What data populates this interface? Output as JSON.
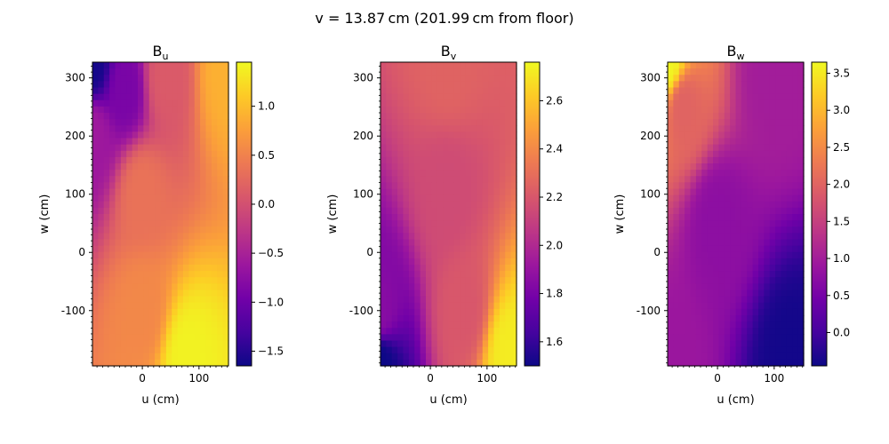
{
  "suptitle": "v = 13.87 cm (201.99 cm from floor)",
  "colormap": [
    "#0d0887",
    "#46039f",
    "#7201a8",
    "#9c179e",
    "#bd3786",
    "#d8576b",
    "#ed7953",
    "#fb9f3a",
    "#fdca26",
    "#f0f921"
  ],
  "chart_data": [
    {
      "type": "heatmap",
      "title": "B",
      "title_sub": "u",
      "xlabel": "u (cm)",
      "ylabel": "w (cm)",
      "xlim": [
        -88,
        152
      ],
      "ylim": [
        -195,
        327
      ],
      "xticks": [
        0,
        100
      ],
      "yticks": [
        -100,
        0,
        100,
        200,
        300
      ],
      "ytick_labels": [
        "-100",
        "0",
        "100",
        "200",
        "300"
      ],
      "colorbar": {
        "min": -1.65,
        "max": 1.45,
        "ticks": [
          -1.5,
          -1.0,
          -0.5,
          0.0,
          0.5,
          1.0
        ],
        "tick_labels": [
          "−1.5",
          "−1.0",
          "−0.5",
          "0.0",
          "0.5",
          "1.0"
        ]
      },
      "field": {
        "description_points": [
          {
            "u": -88,
            "w": 327,
            "value": -1.6
          },
          {
            "u": -30,
            "w": 280,
            "value": -0.9
          },
          {
            "u": -88,
            "w": 200,
            "value": -0.6
          },
          {
            "u": 40,
            "w": 300,
            "value": 0.1
          },
          {
            "u": 150,
            "w": 310,
            "value": 0.9
          },
          {
            "u": 0,
            "w": 100,
            "value": 0.35
          },
          {
            "u": 0,
            "w": -100,
            "value": 0.55
          },
          {
            "u": 80,
            "w": -185,
            "value": 1.4
          }
        ]
      }
    },
    {
      "type": "heatmap",
      "title": "B",
      "title_sub": "v",
      "xlabel": "u (cm)",
      "ylabel": "w (cm)",
      "xlim": [
        -88,
        152
      ],
      "ylim": [
        -195,
        327
      ],
      "xticks": [
        0,
        100
      ],
      "yticks": [
        -100,
        0,
        100,
        200,
        300
      ],
      "ytick_labels": [
        "-100",
        "0",
        "100",
        "200",
        "300"
      ],
      "colorbar": {
        "min": 1.5,
        "max": 2.76,
        "ticks": [
          1.6,
          1.8,
          2.0,
          2.2,
          2.4,
          2.6
        ],
        "tick_labels": [
          "1.6",
          "1.8",
          "2.0",
          "2.2",
          "2.4",
          "2.6"
        ]
      },
      "field": {
        "description_points": [
          {
            "u": 30,
            "w": 327,
            "value": 2.25
          },
          {
            "u": 30,
            "w": 100,
            "value": 2.15
          },
          {
            "u": -88,
            "w": -100,
            "value": 1.85
          },
          {
            "u": -88,
            "w": -195,
            "value": 1.5
          },
          {
            "u": 140,
            "w": -175,
            "value": 2.72
          },
          {
            "u": 60,
            "w": -100,
            "value": 2.2
          }
        ]
      }
    },
    {
      "type": "heatmap",
      "title": "B",
      "title_sub": "w",
      "xlabel": "u (cm)",
      "ylabel": "w (cm)",
      "xlim": [
        -88,
        152
      ],
      "ylim": [
        -195,
        327
      ],
      "xticks": [
        0,
        100
      ],
      "yticks": [
        -100,
        0,
        100,
        200,
        300
      ],
      "ytick_labels": [
        "-100",
        "0",
        "100",
        "200",
        "300"
      ],
      "colorbar": {
        "min": -0.45,
        "max": 3.65,
        "ticks": [
          0.0,
          0.5,
          1.0,
          1.5,
          2.0,
          2.5,
          3.0,
          3.5
        ],
        "tick_labels": [
          "0.0",
          "0.5",
          "1.0",
          "1.5",
          "2.0",
          "2.5",
          "3.0",
          "3.5"
        ]
      },
      "field": {
        "description_points": [
          {
            "u": -88,
            "w": 327,
            "value": 3.6
          },
          {
            "u": -60,
            "w": 250,
            "value": 2.0
          },
          {
            "u": 100,
            "w": 300,
            "value": 1.0
          },
          {
            "u": 0,
            "w": 50,
            "value": 0.75
          },
          {
            "u": -88,
            "w": -195,
            "value": 0.9
          },
          {
            "u": 130,
            "w": -185,
            "value": -0.4
          }
        ]
      }
    }
  ]
}
